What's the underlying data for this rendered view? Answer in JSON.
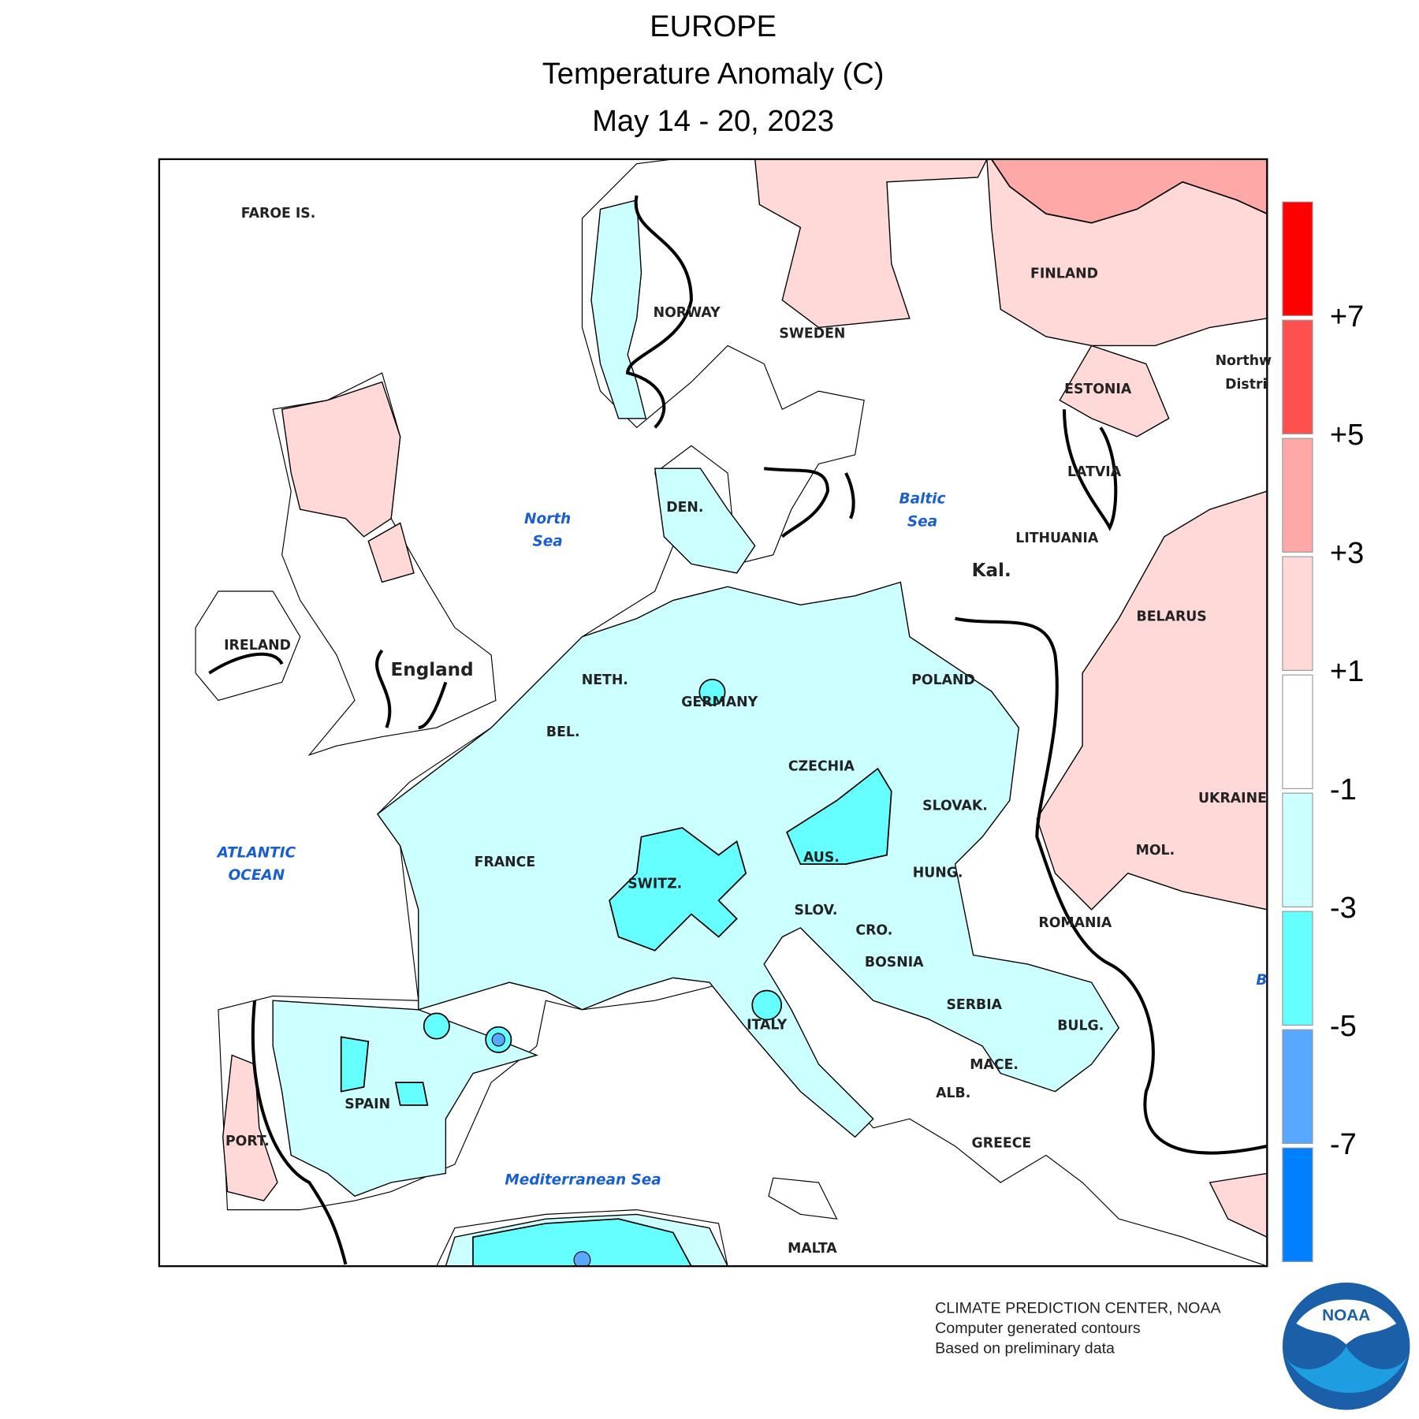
{
  "header": {
    "title": "EUROPE",
    "subtitle": "Temperature Anomaly (C)",
    "date_range": "May 14 - 20, 2023"
  },
  "map_labels": [
    "FAROE IS.",
    "NORWAY",
    "SWEDEN",
    "FINLAND",
    "Northw",
    "Distri",
    "ESTONIA",
    "LATVIA",
    "LITHUANIA",
    "Kal.",
    "BELARUS",
    "DEN.",
    "North",
    "Sea",
    "Baltic",
    "Sea",
    "IRELAND",
    "England",
    "NETH.",
    "GERMANY",
    "POLAND",
    "BEL.",
    "CZECHIA",
    "SLOVAK.",
    "UKRAINE",
    "FRANCE",
    "ATLANTIC",
    "OCEAN",
    "AUS.",
    "HUNG.",
    "MOL.",
    "SWITZ.",
    "SLOV.",
    "CRO.",
    "ROMANIA",
    "BOSNIA",
    "SERBIA",
    "ITALY",
    "BULG.",
    "MACE.",
    "ALB.",
    "SPAIN",
    "PORT.",
    "GREECE",
    "Mediterranean Sea",
    "MALTA",
    "B"
  ],
  "colorbar": {
    "colors": [
      "#ff0000",
      "#ff5050",
      "#ffa8a8",
      "#ffd8d8",
      "#ffffff",
      "#ccffff",
      "#66ffff",
      "#58a8ff",
      "#0080ff"
    ],
    "labels": [
      "+7",
      "+5",
      "+3",
      "+1",
      "-1",
      "-3",
      "-5",
      "-7"
    ]
  },
  "footer": [
    "CLIMATE PREDICTION CENTER, NOAA",
    "Computer generated contours",
    "Based on preliminary data"
  ],
  "logo": "NOAA"
}
